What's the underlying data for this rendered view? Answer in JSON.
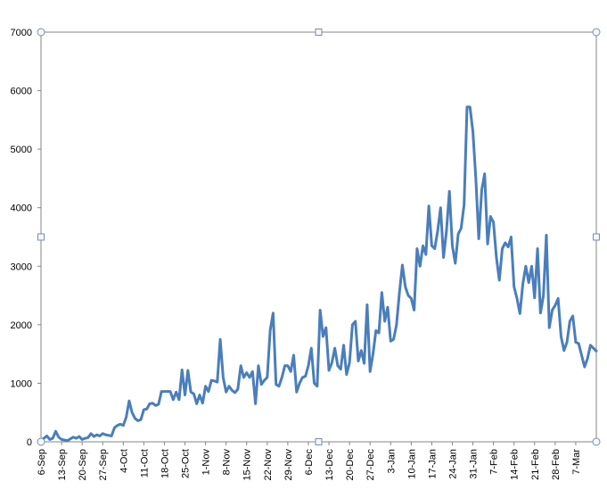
{
  "chart_data": {
    "type": "line",
    "title": "",
    "xlabel": "",
    "ylabel": "",
    "ylim": [
      0,
      7000
    ],
    "y_ticks": [
      0,
      1000,
      2000,
      3000,
      4000,
      5000,
      6000,
      7000
    ],
    "grid": false,
    "legend": "none",
    "x_tick_labels": [
      "6-Sep",
      "13-Sep",
      "20-Sep",
      "27-Sep",
      "4-Oct",
      "11-Oct",
      "18-Oct",
      "25-Oct",
      "1-Nov",
      "8-Nov",
      "15-Nov",
      "22-Nov",
      "29-Nov",
      "6-Dec",
      "13-Dec",
      "20-Dec",
      "27-Dec",
      "3-Jan",
      "10-Jan",
      "17-Jan",
      "24-Jan",
      "31-Jan",
      "7-Feb",
      "14-Feb",
      "21-Feb",
      "28-Feb",
      "7-Mar"
    ],
    "series": [
      {
        "color": "#4a7ebb",
        "values": [
          30,
          60,
          100,
          40,
          60,
          180,
          80,
          40,
          30,
          20,
          50,
          80,
          60,
          90,
          40,
          60,
          70,
          140,
          90,
          120,
          100,
          140,
          120,
          110,
          100,
          240,
          280,
          300,
          280,
          420,
          700,
          500,
          400,
          360,
          380,
          550,
          560,
          650,
          660,
          620,
          640,
          860,
          860,
          860,
          860,
          720,
          850,
          720,
          1230,
          800,
          1220,
          850,
          820,
          650,
          800,
          660,
          950,
          860,
          1050,
          1040,
          1020,
          1750,
          1100,
          850,
          950,
          880,
          840,
          900,
          1300,
          1100,
          1180,
          1100,
          1200,
          650,
          1300,
          980,
          1050,
          1100,
          1900,
          2200,
          980,
          950,
          1100,
          1300,
          1300,
          1200,
          1480,
          850,
          1000,
          1100,
          1120,
          1300,
          1600,
          1000,
          950,
          2250,
          1800,
          1950,
          1220,
          1350,
          1600,
          1300,
          1240,
          1650,
          1150,
          1350,
          2000,
          2060,
          1380,
          1560,
          1340,
          2340,
          1200,
          1500,
          1900,
          1860,
          2550,
          2060,
          2300,
          1720,
          1750,
          2000,
          2550,
          3020,
          2650,
          2500,
          2450,
          2250,
          3300,
          3000,
          3350,
          3200,
          4030,
          3350,
          3300,
          3600,
          4000,
          3150,
          3600,
          4280,
          3350,
          3050,
          3550,
          3650,
          4050,
          5720,
          5720,
          5300,
          4500,
          3470,
          4300,
          4580,
          3380,
          3850,
          3750,
          3150,
          2760,
          3300,
          3400,
          3330,
          3500,
          2650,
          2450,
          2190,
          2700,
          3000,
          2720,
          3000,
          2460,
          3300,
          2200,
          2500,
          3530,
          1950,
          2250,
          2330,
          2450,
          1800,
          1560,
          1700,
          2060,
          2150,
          1700,
          1680,
          1480,
          1280,
          1420,
          1650,
          1600,
          1550
        ]
      }
    ]
  }
}
